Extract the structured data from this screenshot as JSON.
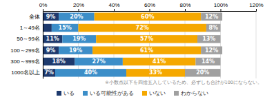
{
  "chart_data": {
    "type": "bar",
    "orientation": "horizontal",
    "stacked": true,
    "categories": [
      "全体",
      "1～49名",
      "50～99名",
      "100～299名",
      "300～999名",
      "1000名以上"
    ],
    "series": [
      {
        "name": "いる",
        "color": "#1e3a6e",
        "values": [
          9,
          5,
          11,
          9,
          18,
          7
        ],
        "value_labels": [
          "9%",
          null,
          "11%",
          "9%",
          "18%",
          "7%"
        ]
      },
      {
        "name": "いる可能性がある",
        "color": "#3c8ec8",
        "values": [
          20,
          15,
          19,
          19,
          27,
          40
        ],
        "value_labels": [
          "20%",
          "15%",
          "19%",
          "19%",
          "27%",
          "40%"
        ]
      },
      {
        "name": "いない",
        "color": "#f5a800",
        "values": [
          60,
          72,
          57,
          61,
          41,
          33
        ],
        "value_labels": [
          "60%",
          "72%",
          "57%",
          "61%",
          "41%",
          "33%"
        ]
      },
      {
        "name": "わからない",
        "color": "#a0a0a0",
        "values": [
          12,
          8,
          13,
          12,
          14,
          20
        ],
        "value_labels": [
          "12%",
          "8%",
          "13%",
          "12%",
          "14%",
          "20%"
        ]
      }
    ],
    "xlim": [
      0,
      120
    ],
    "xticks": [
      {
        "value": 0,
        "label": "0%"
      },
      {
        "value": 20,
        "label": "20%"
      },
      {
        "value": 40,
        "label": "40%"
      },
      {
        "value": 60,
        "label": "60%"
      },
      {
        "value": 80,
        "label": "80%"
      },
      {
        "value": 100,
        "label": "100%"
      },
      {
        "value": 120,
        "label": "120%"
      }
    ],
    "data_labels": true,
    "grid": true,
    "legend": "bottom",
    "annotations": [
      "※小数点以下を四捨五入しているため、必ずしも合計が100にならない。"
    ]
  }
}
